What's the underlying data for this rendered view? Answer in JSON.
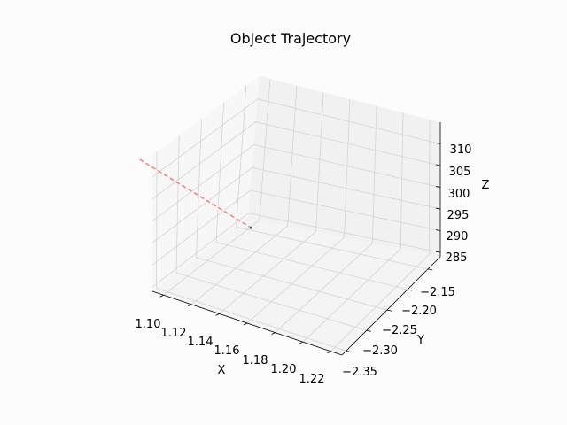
{
  "chart_data": {
    "type": "line",
    "title": "Object Trajectory",
    "xlabel": "X",
    "ylabel": "Y",
    "zlabel": "Z",
    "x_ticks": [
      "1.10",
      "1.12",
      "1.14",
      "1.16",
      "1.18",
      "1.20",
      "1.22"
    ],
    "y_ticks": [
      "−2.35",
      "−2.30",
      "−2.25",
      "−2.20",
      "−2.15"
    ],
    "z_ticks": [
      "285",
      "290",
      "295",
      "300",
      "305",
      "310"
    ],
    "grid": true,
    "series": [
      {
        "color": "#f08080",
        "linestyle": "dashed",
        "points": [
          {
            "x": 1.06,
            "y": -2.28,
            "z": 305
          },
          {
            "x": 1.14,
            "y": -2.28,
            "z": 298
          }
        ]
      }
    ],
    "marker": {
      "x": 1.14,
      "y": -2.28,
      "z": 298
    }
  }
}
